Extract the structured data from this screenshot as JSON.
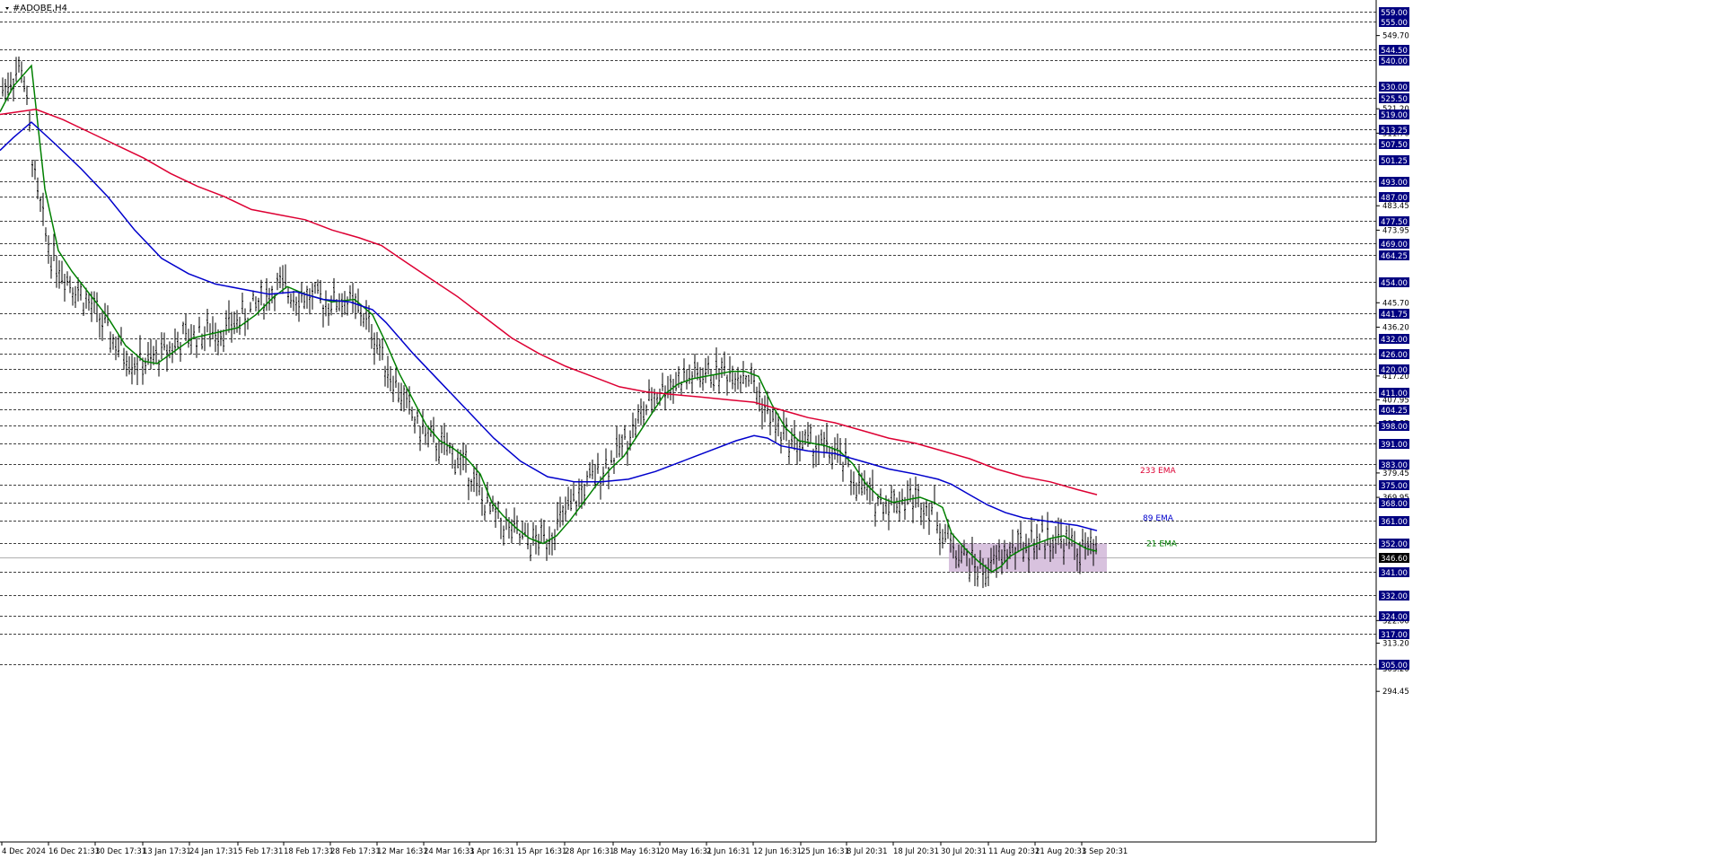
{
  "window": {
    "title": "#ADOBE,H4"
  },
  "chart_data": {
    "type": "line",
    "title": "#ADOBE,H4",
    "symbol": "ADOBE",
    "timeframe": "H4",
    "ylim": [
      294.45,
      560.5
    ],
    "y_ticks_small": [
      "549.70",
      "521.20",
      "511.70",
      "483.45",
      "473.95",
      "445.70",
      "436.20",
      "417.20",
      "407.95",
      "398.85",
      "379.45",
      "369.95",
      "322.00",
      "313.20",
      "303.20",
      "294.45"
    ],
    "y_levels": [
      559.0,
      555.0,
      544.5,
      540.0,
      530.0,
      525.5,
      519.0,
      513.25,
      507.5,
      501.25,
      493.0,
      487.0,
      477.5,
      469.0,
      464.25,
      454.0,
      441.75,
      432.0,
      426.0,
      420.0,
      411.0,
      404.25,
      398.0,
      391.0,
      383.0,
      375.0,
      368.0,
      361.0,
      352.0,
      341.0,
      332.0,
      324.0,
      317.0,
      305.0
    ],
    "current_price": 346.6,
    "current_price_label": "346.60",
    "x_labels": [
      "4 Dec 2024",
      "16 Dec 21:31",
      "30 Dec 17:31",
      "13 Jan 17:31",
      "24 Jan 17:31",
      "5 Feb 17:31",
      "18 Feb 17:31",
      "28 Feb 17:31",
      "12 Mar 16:31",
      "24 Mar 16:31",
      "3 Apr 16:31",
      "15 Apr 16:31",
      "28 Apr 16:31",
      "8 May 16:31",
      "20 May 16:31",
      "2 Jun 16:31",
      "12 Jun 16:31",
      "25 Jun 16:31",
      "8 Jul 20:31",
      "18 Jul 20:31",
      "30 Jul 20:31",
      "11 Aug 20:31",
      "21 Aug 20:31",
      "3 Sep 20:31"
    ],
    "series": [
      {
        "name": "21 EMA",
        "color": "#008000",
        "points": [
          [
            0,
            520
          ],
          [
            15,
            530
          ],
          [
            35,
            538
          ],
          [
            50,
            490
          ],
          [
            65,
            466
          ],
          [
            80,
            458
          ],
          [
            100,
            449
          ],
          [
            120,
            440
          ],
          [
            140,
            429
          ],
          [
            160,
            423
          ],
          [
            175,
            422
          ],
          [
            195,
            427
          ],
          [
            215,
            432
          ],
          [
            240,
            434
          ],
          [
            265,
            436
          ],
          [
            285,
            441
          ],
          [
            305,
            448
          ],
          [
            320,
            452
          ],
          [
            340,
            449
          ],
          [
            370,
            446
          ],
          [
            395,
            447
          ],
          [
            415,
            441
          ],
          [
            430,
            430
          ],
          [
            445,
            418
          ],
          [
            460,
            408
          ],
          [
            475,
            398
          ],
          [
            490,
            392
          ],
          [
            505,
            389
          ],
          [
            520,
            385
          ],
          [
            535,
            379
          ],
          [
            548,
            368
          ],
          [
            560,
            363
          ],
          [
            575,
            358
          ],
          [
            590,
            354
          ],
          [
            605,
            352
          ],
          [
            620,
            355
          ],
          [
            635,
            361
          ],
          [
            650,
            368
          ],
          [
            665,
            375
          ],
          [
            680,
            381
          ],
          [
            695,
            386
          ],
          [
            710,
            394
          ],
          [
            725,
            402
          ],
          [
            740,
            410
          ],
          [
            755,
            414
          ],
          [
            770,
            416
          ],
          [
            785,
            417
          ],
          [
            800,
            418
          ],
          [
            815,
            419
          ],
          [
            830,
            419
          ],
          [
            845,
            417
          ],
          [
            860,
            406
          ],
          [
            875,
            397
          ],
          [
            890,
            392
          ],
          [
            905,
            391
          ],
          [
            920,
            390
          ],
          [
            935,
            388
          ],
          [
            950,
            383
          ],
          [
            965,
            375
          ],
          [
            980,
            370
          ],
          [
            995,
            368
          ],
          [
            1010,
            369
          ],
          [
            1025,
            370
          ],
          [
            1040,
            368
          ],
          [
            1050,
            366
          ],
          [
            1060,
            356
          ],
          [
            1075,
            350
          ],
          [
            1090,
            345
          ],
          [
            1105,
            341
          ],
          [
            1115,
            343
          ],
          [
            1125,
            347
          ],
          [
            1140,
            350
          ],
          [
            1155,
            352
          ],
          [
            1170,
            354
          ],
          [
            1185,
            355
          ],
          [
            1200,
            352
          ],
          [
            1210,
            350
          ],
          [
            1222,
            349
          ]
        ]
      },
      {
        "name": "89 EMA",
        "color": "#0000cc",
        "points": [
          [
            0,
            505
          ],
          [
            15,
            510
          ],
          [
            35,
            516
          ],
          [
            60,
            508
          ],
          [
            90,
            498
          ],
          [
            120,
            487
          ],
          [
            150,
            474
          ],
          [
            180,
            463
          ],
          [
            210,
            457
          ],
          [
            240,
            453
          ],
          [
            270,
            451
          ],
          [
            300,
            449
          ],
          [
            330,
            450
          ],
          [
            360,
            447
          ],
          [
            390,
            446
          ],
          [
            415,
            443
          ],
          [
            430,
            438
          ],
          [
            460,
            426
          ],
          [
            490,
            415
          ],
          [
            520,
            404
          ],
          [
            550,
            393
          ],
          [
            580,
            384
          ],
          [
            610,
            378
          ],
          [
            640,
            376
          ],
          [
            670,
            376
          ],
          [
            700,
            377
          ],
          [
            730,
            380
          ],
          [
            760,
            384
          ],
          [
            790,
            388
          ],
          [
            820,
            392
          ],
          [
            840,
            394
          ],
          [
            855,
            393
          ],
          [
            870,
            390
          ],
          [
            900,
            388
          ],
          [
            930,
            387
          ],
          [
            960,
            384
          ],
          [
            990,
            381
          ],
          [
            1020,
            379
          ],
          [
            1045,
            377
          ],
          [
            1060,
            375
          ],
          [
            1080,
            371
          ],
          [
            1100,
            367
          ],
          [
            1120,
            364
          ],
          [
            1140,
            362
          ],
          [
            1160,
            361
          ],
          [
            1180,
            360
          ],
          [
            1200,
            359
          ],
          [
            1222,
            357
          ]
        ]
      },
      {
        "name": "233 EMA",
        "color": "#dd0033",
        "points": [
          [
            0,
            519
          ],
          [
            20,
            520
          ],
          [
            40,
            521
          ],
          [
            70,
            517
          ],
          [
            100,
            512
          ],
          [
            130,
            507
          ],
          [
            160,
            502
          ],
          [
            190,
            496
          ],
          [
            220,
            491
          ],
          [
            250,
            487
          ],
          [
            280,
            482
          ],
          [
            310,
            480
          ],
          [
            340,
            478
          ],
          [
            370,
            474
          ],
          [
            400,
            471
          ],
          [
            425,
            468
          ],
          [
            450,
            462
          ],
          [
            480,
            455
          ],
          [
            510,
            448
          ],
          [
            540,
            440
          ],
          [
            570,
            432
          ],
          [
            600,
            426
          ],
          [
            630,
            421
          ],
          [
            660,
            417
          ],
          [
            690,
            413
          ],
          [
            720,
            411
          ],
          [
            750,
            410
          ],
          [
            780,
            409
          ],
          [
            810,
            408
          ],
          [
            840,
            407
          ],
          [
            870,
            404
          ],
          [
            900,
            401
          ],
          [
            930,
            399
          ],
          [
            960,
            396
          ],
          [
            990,
            393
          ],
          [
            1020,
            391
          ],
          [
            1050,
            388
          ],
          [
            1080,
            385
          ],
          [
            1110,
            381
          ],
          [
            1140,
            378
          ],
          [
            1170,
            376
          ],
          [
            1200,
            373
          ],
          [
            1222,
            371
          ]
        ]
      }
    ],
    "annotations": [
      {
        "text": "233 EMA",
        "color": "#dd0033",
        "y": 380.5
      },
      {
        "text": "89 EMA",
        "color": "#0000cc",
        "y": 362.0
      },
      {
        "text": "21 EMA",
        "color": "#008000",
        "y": 352.0
      }
    ],
    "highlight_zone": {
      "y_range": [
        341.0,
        352.0
      ],
      "color": "#c8a8d0"
    }
  }
}
